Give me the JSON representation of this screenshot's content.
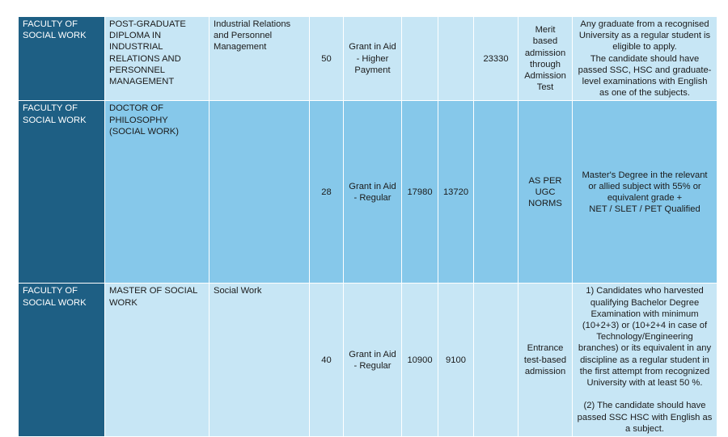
{
  "rows": [
    {
      "faculty": "FACULTY OF SOCIAL WORK",
      "programme": "POST-GRADUATE DIPLOMA IN INDUSTRIAL RELATIONS AND PERSONNEL MANAGEMENT",
      "specialization": "Industrial Relations and Personnel Management",
      "intake": "50",
      "fee_type": "Grant in Aid - Higher Payment",
      "fee_1": "",
      "fee_2": "",
      "fee_3": "23330",
      "admission": "Merit based admission through Admission Test",
      "eligibility": "Any graduate from a recognised University as a regular student is eligible to apply.\nThe candidate should have passed SSC, HSC and graduate-level examinations with English as one of the subjects."
    },
    {
      "faculty": "FACULTY OF SOCIAL WORK",
      "programme": "DOCTOR OF PHILOSOPHY (SOCIAL WORK)",
      "specialization": "",
      "intake": "28",
      "fee_type": "Grant in Aid - Regular",
      "fee_1": "17980",
      "fee_2": "13720",
      "fee_3": "",
      "admission": "AS PER UGC NORMS",
      "eligibility": "Master's Degree in the relevant or allied subject with 55% or equivalent grade +\nNET / SLET / PET Qualified"
    },
    {
      "faculty": "FACULTY OF SOCIAL WORK",
      "programme": "MASTER OF SOCIAL WORK",
      "specialization": "Social Work",
      "intake": "40",
      "fee_type": "Grant in Aid - Regular",
      "fee_1": "10900",
      "fee_2": "9100",
      "fee_3": "",
      "admission": "Entrance test-based admission",
      "eligibility": "1) Candidates who harvested qualifying Bachelor Degree Examination with minimum (10+2+3) or (10+2+4 in case of Technology/Engineering branches) or its equivalent in any discipline as a regular student in the first attempt from recognized University with at least 50 %.\n\n(2) The candidate should have passed SSC HSC with English as a subject."
    }
  ]
}
